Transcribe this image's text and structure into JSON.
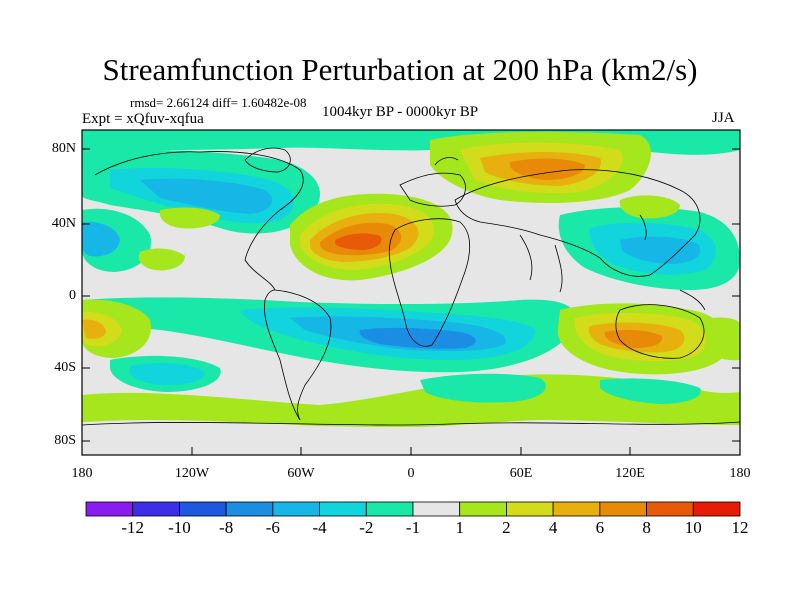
{
  "title": "Streamfunction Perturbation at 200 hPa (km2/s)",
  "stats": "rmsd= 2.66124 diff= 1.60482e-08",
  "experiment": "Expt = xQfuv-xqfua",
  "period": "1004kyr BP - 0000kyr BP",
  "season": "JJA",
  "axes": {
    "lat_ticks": [
      "80N",
      "40N",
      "0",
      "40S",
      "80S"
    ],
    "lon_ticks": [
      "180",
      "120W",
      "60W",
      "0",
      "60E",
      "120E",
      "180"
    ]
  },
  "colorbar": {
    "labels": [
      "-12",
      "-10",
      "-8",
      "-6",
      "-4",
      "-2",
      "-1",
      "1",
      "2",
      "4",
      "6",
      "8",
      "10",
      "12"
    ],
    "colors": [
      "#8a1cf0",
      "#3e2ee8",
      "#1f58e0",
      "#1b8ee4",
      "#16b6e6",
      "#12d4dc",
      "#19e8a8",
      "#e6e6e6",
      "#a6e61c",
      "#d2dc1a",
      "#e8b00f",
      "#e88a08",
      "#e85a08",
      "#e81a08"
    ]
  },
  "colors": {
    "background": "#e6e6e6",
    "coast": "#000000"
  }
}
